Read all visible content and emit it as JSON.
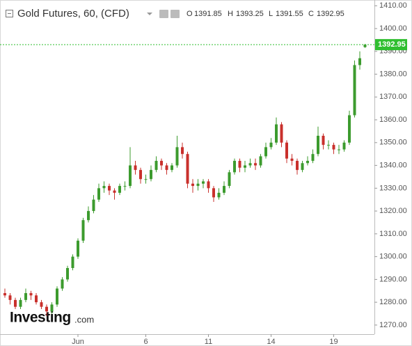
{
  "chart_data": {
    "type": "candlestick",
    "header": {
      "symbol": "Gold Futures, 60, (CFD)",
      "open_label": "O",
      "open": 1391.85,
      "high_label": "H",
      "high": 1393.25,
      "low_label": "L",
      "low": 1391.55,
      "close_label": "C",
      "close": 1392.95
    },
    "watermark": "Investing",
    "watermark_suffix": ".com",
    "categories": [
      null,
      null,
      null,
      null,
      null,
      null,
      null,
      null,
      null,
      null,
      null,
      null,
      null,
      null,
      "Jun",
      null,
      null,
      null,
      null,
      null,
      null,
      null,
      null,
      null,
      null,
      null,
      null,
      "6",
      null,
      null,
      null,
      null,
      null,
      null,
      null,
      null,
      null,
      null,
      null,
      "11",
      null,
      null,
      null,
      null,
      null,
      null,
      null,
      null,
      null,
      null,
      null,
      "14",
      null,
      null,
      null,
      null,
      null,
      null,
      null,
      null,
      null,
      null,
      null,
      "19",
      null,
      null,
      null,
      null,
      null,
      null
    ],
    "open": [
      1284,
      1283,
      1281,
      1278,
      1281,
      1284,
      1283,
      1280,
      1278,
      1276,
      1279,
      1286,
      1290,
      1295,
      1300,
      1307,
      1316,
      1320,
      1325,
      1330,
      1331,
      1329,
      1328,
      1331,
      1331,
      1340,
      1338,
      1334,
      1334,
      1338,
      1342,
      1340,
      1338,
      1340,
      1348,
      1345,
      1332,
      1331,
      1332,
      1333,
      1330,
      1326,
      1328,
      1331,
      1337,
      1342,
      1339,
      1340,
      1341,
      1340,
      1344,
      1348,
      1350,
      1358,
      1350,
      1343,
      1342,
      1338,
      1341,
      1342,
      1345,
      1353,
      1349,
      1349,
      1347,
      1347,
      1350,
      1362,
      1384,
      1391.85
    ],
    "high": [
      1286,
      1284,
      1282,
      1282,
      1286,
      1285,
      1284,
      1281,
      1279,
      1280,
      1287,
      1291,
      1296,
      1301,
      1308,
      1317,
      1322,
      1327,
      1332,
      1333,
      1332,
      1330,
      1332,
      1333,
      1348,
      1342,
      1339,
      1336,
      1340,
      1344,
      1343,
      1341,
      1341,
      1353,
      1350,
      1346,
      1334,
      1334,
      1334,
      1334,
      1331,
      1330,
      1333,
      1338,
      1343,
      1343,
      1342,
      1343,
      1343,
      1345,
      1350,
      1352,
      1361,
      1359,
      1351,
      1345,
      1343,
      1342,
      1344,
      1347,
      1357,
      1354,
      1351,
      1350,
      1349,
      1351,
      1364,
      1386,
      1390,
      1393.25
    ],
    "low": [
      1282,
      1279,
      1277,
      1277,
      1280,
      1281,
      1279,
      1277,
      1274,
      1275,
      1278,
      1285,
      1289,
      1294,
      1299,
      1306,
      1315,
      1319,
      1324,
      1328,
      1327,
      1325,
      1327,
      1329,
      1330,
      1336,
      1332,
      1332,
      1333,
      1337,
      1338,
      1336,
      1337,
      1339,
      1343,
      1330,
      1328,
      1329,
      1330,
      1328,
      1324,
      1325,
      1327,
      1330,
      1336,
      1337,
      1337,
      1339,
      1338,
      1339,
      1343,
      1347,
      1349,
      1348,
      1341,
      1340,
      1336,
      1337,
      1340,
      1341,
      1344,
      1347,
      1347,
      1345,
      1345,
      1346,
      1349,
      1361,
      1382,
      1391.55
    ],
    "close": [
      1283,
      1281,
      1278,
      1281,
      1284,
      1283,
      1280,
      1278,
      1276,
      1279,
      1286,
      1290,
      1295,
      1300,
      1307,
      1316,
      1320,
      1325,
      1330,
      1331,
      1329,
      1328,
      1331,
      1331,
      1340,
      1338,
      1334,
      1334,
      1338,
      1342,
      1340,
      1338,
      1340,
      1348,
      1345,
      1332,
      1331,
      1332,
      1333,
      1330,
      1326,
      1328,
      1331,
      1337,
      1342,
      1339,
      1340,
      1341,
      1340,
      1344,
      1348,
      1350,
      1358,
      1350,
      1343,
      1342,
      1338,
      1341,
      1342,
      1345,
      1353,
      1349,
      1349,
      1347,
      1347,
      1350,
      1362,
      1384,
      1387,
      1392.95
    ],
    "up_color": "#3c9b2e",
    "down_color": "#c9302c",
    "price_line_color": "#2fbf2f",
    "ylim": [
      1266,
      1411
    ],
    "yticks": [
      {
        "value": 1270,
        "label": "1270.00"
      },
      {
        "value": 1280,
        "label": "1280.00"
      },
      {
        "value": 1290,
        "label": "1290.00"
      },
      {
        "value": 1300,
        "label": "1300.00"
      },
      {
        "value": 1310,
        "label": "1310.00"
      },
      {
        "value": 1320,
        "label": "1320.00"
      },
      {
        "value": 1330,
        "label": "1330.00"
      },
      {
        "value": 1340,
        "label": "1340.00"
      },
      {
        "value": 1350,
        "label": "1350.00"
      },
      {
        "value": 1360,
        "label": "1360.00"
      },
      {
        "value": 1370,
        "label": "1370.00"
      },
      {
        "value": 1380,
        "label": "1380.00"
      },
      {
        "value": 1390,
        "label": "1390.00"
      },
      {
        "value": 1400,
        "label": "1400.00"
      },
      {
        "value": 1410,
        "label": "1410.00"
      }
    ],
    "grid": false
  }
}
